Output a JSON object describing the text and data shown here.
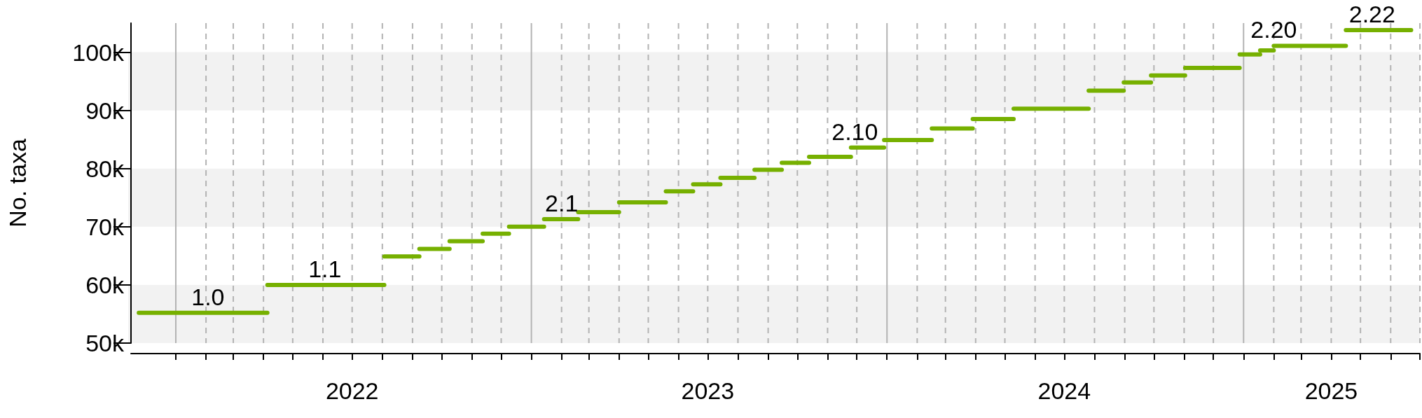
{
  "chart_data": {
    "type": "line",
    "ylabel": "No. taxa",
    "color": "#76b000",
    "series": [
      {
        "x": [
          "2021-11-24",
          "2022-04-05"
        ],
        "values": [
          55200,
          55200
        ]
      },
      {
        "x": [
          "2022-04-05",
          "2022-08-03"
        ],
        "values": [
          60000,
          60000
        ]
      },
      {
        "x": [
          "2022-08-03",
          "2022-09-08"
        ],
        "values": [
          64900,
          64900
        ]
      },
      {
        "x": [
          "2022-09-08",
          "2022-10-09"
        ],
        "values": [
          66200,
          66200
        ]
      },
      {
        "x": [
          "2022-10-09",
          "2022-11-12"
        ],
        "values": [
          67500,
          67500
        ]
      },
      {
        "x": [
          "2022-11-12",
          "2022-12-09"
        ],
        "values": [
          68800,
          68800
        ]
      },
      {
        "x": [
          "2022-12-09",
          "2023-01-14"
        ],
        "values": [
          70000,
          70000
        ]
      },
      {
        "x": [
          "2023-01-14",
          "2023-02-18"
        ],
        "values": [
          71300,
          71300
        ]
      },
      {
        "x": [
          "2023-02-18",
          "2023-04-01"
        ],
        "values": [
          72500,
          72500
        ]
      },
      {
        "x": [
          "2023-04-01",
          "2023-05-19"
        ],
        "values": [
          74200,
          74200
        ]
      },
      {
        "x": [
          "2023-05-19",
          "2023-06-16"
        ],
        "values": [
          76100,
          76100
        ]
      },
      {
        "x": [
          "2023-06-16",
          "2023-07-14"
        ],
        "values": [
          77300,
          77300
        ]
      },
      {
        "x": [
          "2023-07-14",
          "2023-08-18"
        ],
        "values": [
          78400,
          78400
        ]
      },
      {
        "x": [
          "2023-08-18",
          "2023-09-15"
        ],
        "values": [
          79800,
          79800
        ]
      },
      {
        "x": [
          "2023-09-15",
          "2023-10-13"
        ],
        "values": [
          81000,
          81000
        ]
      },
      {
        "x": [
          "2023-10-13",
          "2023-11-25"
        ],
        "values": [
          82000,
          82000
        ]
      },
      {
        "x": [
          "2023-11-25",
          "2023-12-29"
        ],
        "values": [
          83600,
          83600
        ]
      },
      {
        "x": [
          "2023-12-29",
          "2024-02-16"
        ],
        "values": [
          84900,
          84900
        ]
      },
      {
        "x": [
          "2024-02-16",
          "2024-03-29"
        ],
        "values": [
          86900,
          86900
        ]
      },
      {
        "x": [
          "2024-03-29",
          "2024-05-10"
        ],
        "values": [
          88500,
          88500
        ]
      },
      {
        "x": [
          "2024-05-10",
          "2024-07-26"
        ],
        "values": [
          90300,
          90300
        ]
      },
      {
        "x": [
          "2024-07-26",
          "2024-08-31"
        ],
        "values": [
          93400,
          93400
        ]
      },
      {
        "x": [
          "2024-08-31",
          "2024-09-28"
        ],
        "values": [
          94800,
          94800
        ]
      },
      {
        "x": [
          "2024-09-28",
          "2024-11-02"
        ],
        "values": [
          96000,
          96000
        ]
      },
      {
        "x": [
          "2024-11-02",
          "2024-12-28"
        ],
        "values": [
          97300,
          97300
        ]
      },
      {
        "x": [
          "2024-12-28",
          "2025-01-18"
        ],
        "values": [
          99600,
          99600
        ]
      },
      {
        "x": [
          "2025-01-18",
          "2025-02-01"
        ],
        "values": [
          100300,
          100300
        ]
      },
      {
        "x": [
          "2025-02-01",
          "2025-04-16"
        ],
        "values": [
          101100,
          101100
        ]
      },
      {
        "x": [
          "2025-04-16",
          "2025-06-22"
        ],
        "values": [
          103800,
          103800
        ]
      }
    ],
    "xlim": [
      "2021-11-16",
      "2025-07-01"
    ],
    "xticks": [
      {
        "value": "2022-01",
        "label": null
      },
      {
        "value": "2022-02",
        "label": null
      },
      {
        "value": "2022-03",
        "label": null
      },
      {
        "value": "2022-04",
        "label": null
      },
      {
        "value": "2022-05",
        "label": null
      },
      {
        "value": "2022-06",
        "label": null
      },
      {
        "value": "2022-07",
        "label": "2022"
      },
      {
        "value": "2022-08",
        "label": null
      },
      {
        "value": "2022-09",
        "label": null
      },
      {
        "value": "2022-10",
        "label": null
      },
      {
        "value": "2022-11",
        "label": null
      },
      {
        "value": "2022-12",
        "label": null
      },
      {
        "value": "2023-01",
        "label": null
      },
      {
        "value": "2023-02",
        "label": null
      },
      {
        "value": "2023-03",
        "label": null
      },
      {
        "value": "2023-04",
        "label": null
      },
      {
        "value": "2023-05",
        "label": null
      },
      {
        "value": "2023-06",
        "label": null
      },
      {
        "value": "2023-07",
        "label": "2023"
      },
      {
        "value": "2023-08",
        "label": null
      },
      {
        "value": "2023-09",
        "label": null
      },
      {
        "value": "2023-10",
        "label": null
      },
      {
        "value": "2023-11",
        "label": null
      },
      {
        "value": "2023-12",
        "label": null
      },
      {
        "value": "2024-01",
        "label": null
      },
      {
        "value": "2024-02",
        "label": null
      },
      {
        "value": "2024-03",
        "label": null
      },
      {
        "value": "2024-04",
        "label": null
      },
      {
        "value": "2024-05",
        "label": null
      },
      {
        "value": "2024-06",
        "label": null
      },
      {
        "value": "2024-07",
        "label": "2024"
      },
      {
        "value": "2024-08",
        "label": null
      },
      {
        "value": "2024-09",
        "label": null
      },
      {
        "value": "2024-10",
        "label": null
      },
      {
        "value": "2024-11",
        "label": null
      },
      {
        "value": "2024-12",
        "label": null
      },
      {
        "value": "2025-01",
        "label": null
      },
      {
        "value": "2025-02",
        "label": null
      },
      {
        "value": "2025-03",
        "label": null
      },
      {
        "value": "2025-04",
        "label": "2025"
      },
      {
        "value": "2025-05",
        "label": null
      },
      {
        "value": "2025-06",
        "label": null
      },
      {
        "value": "2025-07",
        "label": null
      }
    ],
    "ylim": [
      50000,
      105000
    ],
    "yticks": [
      {
        "value": 50000,
        "label": "50k"
      },
      {
        "value": 60000,
        "label": "60k"
      },
      {
        "value": 70000,
        "label": "70k"
      },
      {
        "value": 80000,
        "label": "80k"
      },
      {
        "value": 90000,
        "label": "90k"
      },
      {
        "value": 100000,
        "label": "100k"
      }
    ],
    "grid": "x",
    "bands": [
      {
        "axis": "y",
        "from": 50000,
        "to": 60000,
        "color": "#f2f2f2"
      },
      {
        "axis": "y",
        "from": 70000,
        "to": 80000,
        "color": "#f2f2f2"
      },
      {
        "axis": "y",
        "from": 90000,
        "to": 100000,
        "color": "#f2f2f2"
      }
    ],
    "annotations": [
      {
        "text": "1.0",
        "x": "2022-02-03",
        "y": 55200
      },
      {
        "text": "1.1",
        "x": "2022-06-03",
        "y": 60000
      },
      {
        "text": "2.1",
        "x": "2023-02-01",
        "y": 71300
      },
      {
        "text": "2.10",
        "x": "2023-11-29",
        "y": 83600
      },
      {
        "text": "2.20",
        "x": "2025-02-01",
        "y": 101100
      },
      {
        "text": "2.22",
        "x": "2025-05-13",
        "y": 103800
      }
    ]
  }
}
